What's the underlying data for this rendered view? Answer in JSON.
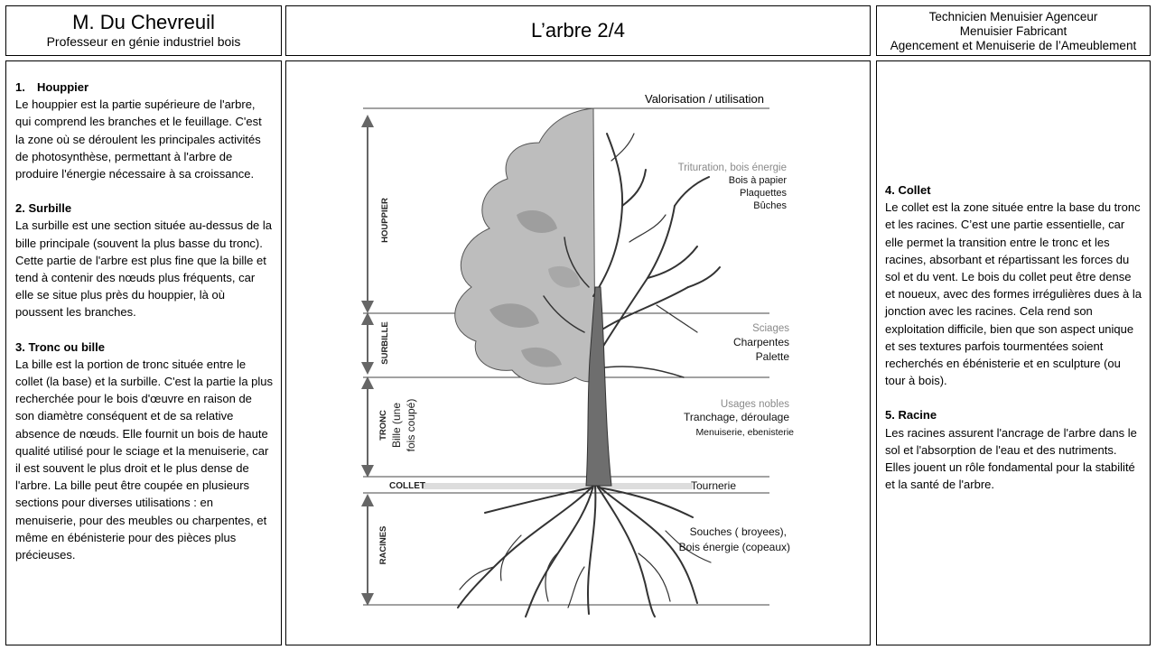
{
  "header": {
    "author_name": "M. Du Chevreuil",
    "author_role": "Professeur en génie industriel bois",
    "title": "L’arbre 2/4",
    "programs": [
      "Technicien Menuisier Agenceur",
      "Menuisier Fabricant",
      "Agencement et Menuiserie de l’Ameublement"
    ]
  },
  "left_sections": [
    {
      "num": "1.",
      "title": "Houppier",
      "body": "Le houppier est la partie supérieure de l'arbre, qui comprend les branches et le feuillage. C'est la zone où se déroulent les principales activités de photosynthèse, permettant à l'arbre de produire l'énergie nécessaire à sa croissance."
    },
    {
      "title": "2. Surbille",
      "body": "La surbille est une section située au-dessus de la bille principale (souvent la plus basse du tronc). Cette partie de l'arbre est plus fine que la bille et tend à contenir des nœuds plus fréquents, car elle se situe plus près du houppier, là où poussent les branches."
    },
    {
      "title": "3. Tronc ou bille",
      "body": "La bille est la portion de tronc située entre le collet (la base) et la surbille. C'est la partie la plus recherchée pour le bois d'œuvre en raison de son diamètre conséquent et de sa relative absence de nœuds. Elle fournit un bois de haute qualité utilisé pour le sciage et la menuiserie, car il est souvent le plus droit et le plus dense de l'arbre. La bille peut être coupée en plusieurs sections pour diverses utilisations : en menuiserie, pour des meubles ou charpentes, et même en ébénisterie pour des pièces plus précieuses."
    }
  ],
  "right_sections": [
    {
      "title": "4. Collet",
      "body": "Le collet est la zone située entre la base du tronc et les racines. C’est une partie essentielle, car elle permet la transition entre le tronc et les racines, absorbant et répartissant les forces du sol et du vent. Le bois du collet peut être dense et noueux, avec des formes irrégulières dues à la jonction avec les racines. Cela rend son exploitation difficile, bien que son aspect unique et ses textures parfois tourmentées soient recherchés en ébénisterie et en sculpture (ou tour à bois)."
    },
    {
      "title": "5. Racine",
      "body": "Les racines assurent l'ancrage de l'arbre dans le sol et l'absorption de l'eau et des nutriments. Elles jouent un rôle fondamental pour la stabilité et la santé de l'arbre."
    }
  ],
  "diagram": {
    "heading": "Valorisation / utilisation",
    "zones": {
      "houppier": "HOUPPIER",
      "surbille": "SURBILLE",
      "tronc": "TRONC",
      "bille_line1": "Bille (une",
      "bille_line2": "fois coupé)",
      "collet": "COLLET",
      "racines": "RACINES"
    },
    "uses": {
      "houppier_head": "Trituration, bois énergie",
      "houppier_items": [
        "Bois à papier",
        "Plaquettes",
        "Bûches"
      ],
      "surbille_head": "Sciages",
      "surbille_items": [
        "Charpentes",
        "Palette"
      ],
      "tronc_head": "Usages nobles",
      "tronc_items": [
        "Tranchage, déroulage",
        "Menuiserie, ebenisterie"
      ],
      "collet_item": "Tournerie",
      "racines_items": [
        "Souches ( broyees),",
        "Bois énergie (copeaux)"
      ]
    }
  }
}
